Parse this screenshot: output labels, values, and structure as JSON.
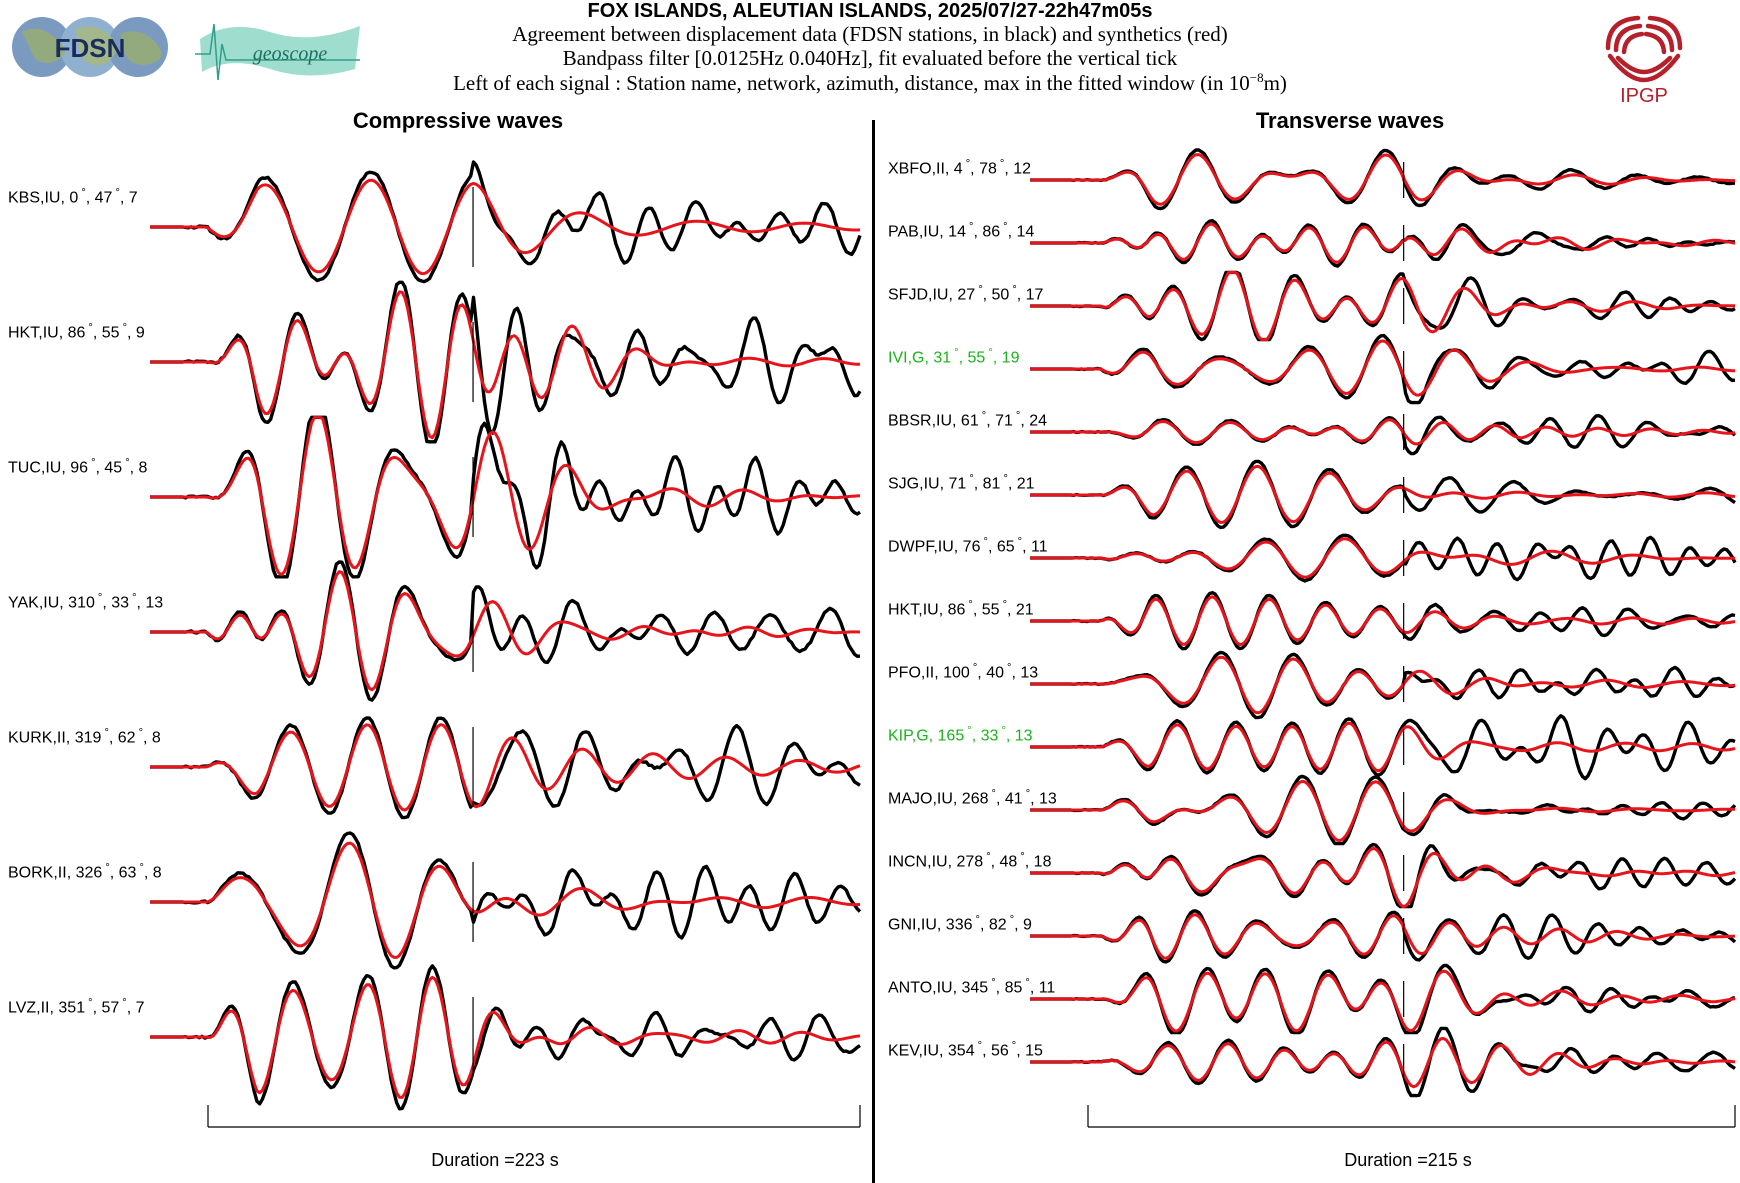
{
  "header": {
    "title": "FOX ISLANDS, ALEUTIAN ISLANDS, 2025/07/27-22h47m05s",
    "line1": "Agreement between displacement data (FDSN stations, in black) and synthetics (red)",
    "line2": "Bandpass filter [0.0125Hz 0.040Hz], fit evaluated before the vertical tick",
    "line3_prefix": "Left of each signal : Station name, network, azimuth, distance, max in the fitted window (in 10",
    "line3_exp": "−8",
    "line3_suffix": "m)"
  },
  "logos": {
    "fdsn": "FDSN",
    "geoscope": "geoscope",
    "ipgp": "IPGP"
  },
  "colors": {
    "data": "#000000",
    "synthetic": "#e8141b",
    "highlight_label": "#1bb31b",
    "ipgp": "#b5202a",
    "fdsn_globe": "#7a9bbf",
    "geoscope": "#3fb8a0"
  },
  "chart_data": [
    {
      "type": "line",
      "title": "Compressive waves",
      "duration_label": "Duration =223 s",
      "series_legend": [
        "displacement data",
        "synthetics"
      ],
      "traces": [
        {
          "station": "KBS",
          "network": "IU",
          "azimuth": "0",
          "distance": "47",
          "max": "7",
          "highlight": false
        },
        {
          "station": "HKT",
          "network": "IU",
          "azimuth": "86",
          "distance": "55",
          "max": "9",
          "highlight": false
        },
        {
          "station": "TUC",
          "network": "IU",
          "azimuth": "96",
          "distance": "45",
          "max": "8",
          "highlight": false
        },
        {
          "station": "YAK",
          "network": "IU",
          "azimuth": "310",
          "distance": "33",
          "max": "13",
          "highlight": false
        },
        {
          "station": "KURK",
          "network": "II",
          "azimuth": "319",
          "distance": "62",
          "max": "8",
          "highlight": false
        },
        {
          "station": "BORK",
          "network": "II",
          "azimuth": "326",
          "distance": "63",
          "max": "8",
          "highlight": false
        },
        {
          "station": "LVZ",
          "network": "II",
          "azimuth": "351",
          "distance": "57",
          "max": "7",
          "highlight": false
        }
      ]
    },
    {
      "type": "line",
      "title": "Transverse waves",
      "duration_label": "Duration =215 s",
      "series_legend": [
        "displacement data",
        "synthetics"
      ],
      "traces": [
        {
          "station": "XBFO",
          "network": "II",
          "azimuth": "4",
          "distance": "78",
          "max": "12",
          "highlight": false
        },
        {
          "station": "PAB",
          "network": "IU",
          "azimuth": "14",
          "distance": "86",
          "max": "14",
          "highlight": false
        },
        {
          "station": "SFJD",
          "network": "IU",
          "azimuth": "27",
          "distance": "50",
          "max": "17",
          "highlight": false
        },
        {
          "station": "IVI",
          "network": "G",
          "azimuth": "31",
          "distance": "55",
          "max": "19",
          "highlight": true
        },
        {
          "station": "BBSR",
          "network": "IU",
          "azimuth": "61",
          "distance": "71",
          "max": "24",
          "highlight": false
        },
        {
          "station": "SJG",
          "network": "IU",
          "azimuth": "71",
          "distance": "81",
          "max": "21",
          "highlight": false
        },
        {
          "station": "DWPF",
          "network": "IU",
          "azimuth": "76",
          "distance": "65",
          "max": "11",
          "highlight": false
        },
        {
          "station": "HKT",
          "network": "IU",
          "azimuth": "86",
          "distance": "55",
          "max": "21",
          "highlight": false
        },
        {
          "station": "PFO",
          "network": "II",
          "azimuth": "100",
          "distance": "40",
          "max": "13",
          "highlight": false
        },
        {
          "station": "KIP",
          "network": "G",
          "azimuth": "165",
          "distance": "33",
          "max": "13",
          "highlight": true
        },
        {
          "station": "MAJO",
          "network": "IU",
          "azimuth": "268",
          "distance": "41",
          "max": "13",
          "highlight": false
        },
        {
          "station": "INCN",
          "network": "IU",
          "azimuth": "278",
          "distance": "48",
          "max": "18",
          "highlight": false
        },
        {
          "station": "GNI",
          "network": "IU",
          "azimuth": "336",
          "distance": "82",
          "max": "9",
          "highlight": false
        },
        {
          "station": "ANTO",
          "network": "IU",
          "azimuth": "345",
          "distance": "85",
          "max": "11",
          "highlight": false
        },
        {
          "station": "KEV",
          "network": "IU",
          "azimuth": "354",
          "distance": "56",
          "max": "15",
          "highlight": false
        }
      ]
    }
  ]
}
